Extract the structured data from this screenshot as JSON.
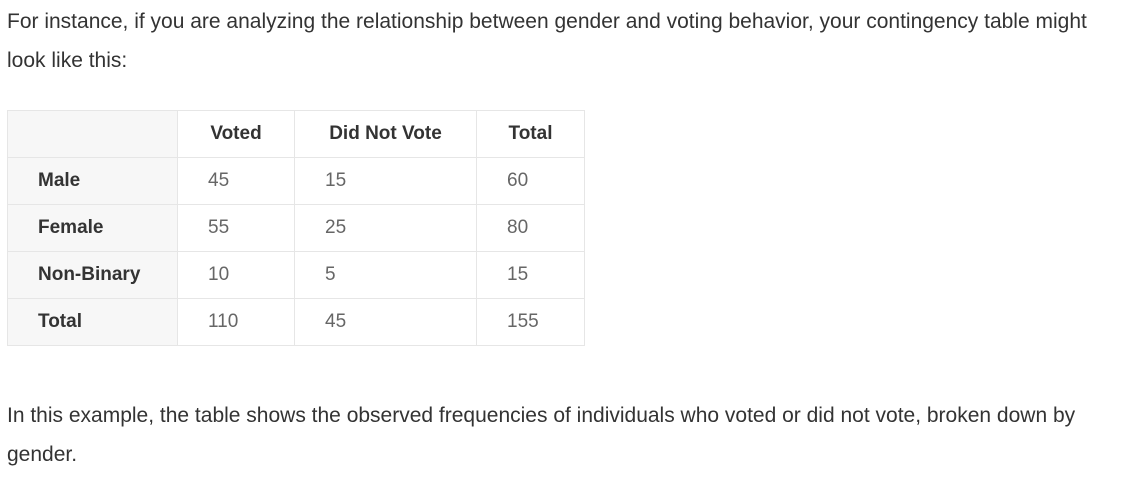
{
  "intro": "For instance, if you are analyzing the relationship between gender and voting behavior, your contingency table might look like this:",
  "table": {
    "headers": [
      "",
      "Voted",
      "Did Not Vote",
      "Total"
    ],
    "rows": [
      {
        "label": "Male",
        "cells": [
          "45",
          "15",
          "60"
        ]
      },
      {
        "label": "Female",
        "cells": [
          "55",
          "25",
          "80"
        ]
      },
      {
        "label": "Non-Binary",
        "cells": [
          "10",
          "5",
          "15"
        ]
      },
      {
        "label": "Total",
        "cells": [
          "110",
          "45",
          "155"
        ]
      }
    ]
  },
  "outro": "In this example, the table shows the observed frequencies of individuals who voted or did not vote, broken down by gender."
}
